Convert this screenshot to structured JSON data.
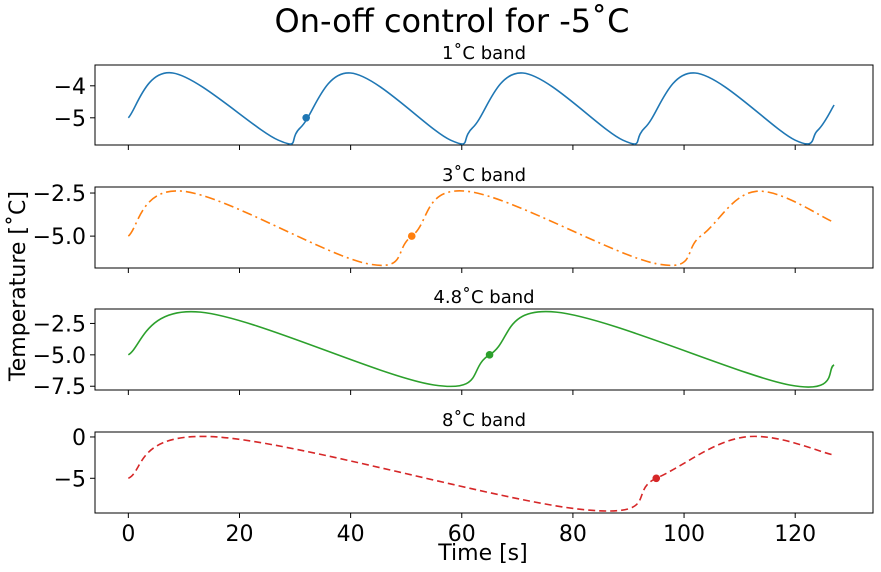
{
  "figure": {
    "title": "On-off control for -5˚C",
    "xlabel": "Time [s]",
    "ylabel": "Temperature [˚C]"
  },
  "chart_data": [
    {
      "type": "line",
      "title": "1˚C band",
      "color": "#1f77b4",
      "line_style": "solid",
      "xlim": [
        -6,
        134
      ],
      "ylim": [
        -5.85,
        -3.35
      ],
      "yticks": [
        -5,
        -4
      ],
      "yticklabels": [
        "−5",
        "−4"
      ],
      "xticks": [
        0,
        20,
        40,
        60,
        80,
        100,
        120
      ],
      "show_xticklabels": false,
      "series": [
        {
          "x": [
            0,
            8,
            27,
            31,
            40,
            58,
            62,
            71,
            89,
            93,
            102,
            120,
            124,
            127
          ],
          "y": [
            -5.0,
            -3.6,
            -5.7,
            -5.3,
            -3.6,
            -5.7,
            -5.3,
            -3.6,
            -5.7,
            -5.3,
            -3.6,
            -5.7,
            -5.4,
            -4.6
          ]
        }
      ],
      "marker": {
        "x": 32,
        "y": -5.0
      }
    },
    {
      "type": "line",
      "title": "3˚C band",
      "color": "#ff7f0e",
      "line_style": "dashdot",
      "xlim": [
        -6,
        134
      ],
      "ylim": [
        -6.85,
        -2.15
      ],
      "yticks": [
        -5,
        -2.5
      ],
      "yticklabels": [
        "−5.0",
        "−2.5"
      ],
      "xticks": [
        0,
        20,
        40,
        60,
        80,
        100,
        120
      ],
      "show_xticklabels": false,
      "series": [
        {
          "x": [
            0,
            10,
            43,
            51,
            61,
            95,
            103,
            113,
            127
          ],
          "y": [
            -5.0,
            -2.4,
            -6.6,
            -5.0,
            -2.4,
            -6.6,
            -5.0,
            -2.4,
            -4.2
          ]
        }
      ],
      "marker": {
        "x": 51,
        "y": -5.0
      }
    },
    {
      "type": "line",
      "title": "4.8˚C band",
      "color": "#2ca02c",
      "line_style": "solid",
      "xlim": [
        -6,
        134
      ],
      "ylim": [
        -7.8,
        -1.35
      ],
      "yticks": [
        -7.5,
        -5,
        -2.5
      ],
      "yticklabels": [
        "−7.5",
        "−5.0",
        "−2.5"
      ],
      "xticks": [
        0,
        20,
        40,
        60,
        80,
        100,
        120
      ],
      "show_xticklabels": false,
      "series": [
        {
          "x": [
            0,
            13,
            55,
            65,
            77,
            119,
            127
          ],
          "y": [
            -5.0,
            -1.6,
            -7.4,
            -5.0,
            -1.6,
            -7.4,
            -5.8
          ]
        }
      ],
      "marker": {
        "x": 65,
        "y": -5.0
      }
    },
    {
      "type": "line",
      "title": "8˚C band",
      "color": "#d62728",
      "line_style": "dashed",
      "xlim": [
        -6,
        134
      ],
      "ylim": [
        -9.2,
        0.6
      ],
      "yticks": [
        -5,
        0
      ],
      "yticklabels": [
        "−5",
        "0"
      ],
      "xticks": [
        0,
        20,
        40,
        60,
        80,
        100,
        120
      ],
      "xticklabels": [
        "0",
        "20",
        "40",
        "60",
        "80",
        "100",
        "120"
      ],
      "show_xticklabels": true,
      "series": [
        {
          "x": [
            0,
            16,
            82,
            95,
            111,
            127
          ],
          "y": [
            -5.0,
            0.0,
            -8.8,
            -5.0,
            0.0,
            -2.2
          ]
        }
      ],
      "marker": {
        "x": 95,
        "y": -5.0
      }
    }
  ]
}
